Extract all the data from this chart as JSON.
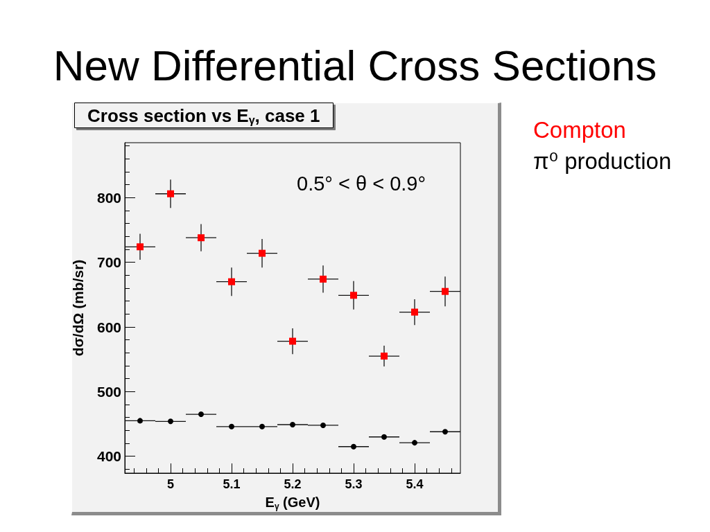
{
  "chart_data": {
    "type": "scatter",
    "title": "New Differential Cross Sections",
    "subtitle": "Cross section vs E$_{γ}$, case 1",
    "xlabel": "E$_{γ}$ (GeV)",
    "ylabel": "dσ/dΩ (mb/sr)",
    "annotations": [
      "0.5° < θ < 0.9°"
    ],
    "x": [
      4.95,
      5,
      5.05,
      5.1,
      5.15,
      5.2,
      5.25,
      5.3,
      5.35,
      5.4,
      5.45
    ],
    "series": [
      {
        "name": "Compton",
        "color": "#ff0000",
        "marker": "square",
        "values": [
          724,
          806,
          738,
          670,
          714,
          578,
          674,
          649,
          555,
          623,
          655
        ],
        "errors": [
          20,
          22,
          21,
          22,
          22,
          20,
          21,
          22,
          16,
          20,
          23
        ],
        "xerrors": [
          0.025,
          0.025,
          0.025,
          0.025,
          0.025,
          0.025,
          0.025,
          0.025,
          0.025,
          0.025,
          0.025
        ]
      },
      {
        "name": "π⁰ production",
        "color": "#000000",
        "marker": "circle",
        "values": [
          455,
          454,
          465,
          446,
          446,
          449,
          448,
          415,
          430,
          421,
          438
        ],
        "xerrors": [
          0.025,
          0.025,
          0.025,
          0.025,
          0.025,
          0.025,
          0.025,
          0.025,
          0.025,
          0.025,
          0.025
        ]
      }
    ],
    "xlim": [
      4.925,
      5.475
    ],
    "xticks": [
      {
        "value": 4.94,
        "label": null
      },
      {
        "value": 4.96,
        "label": null
      },
      {
        "value": 4.98,
        "label": null
      },
      5,
      {
        "value": 5.02,
        "label": null
      },
      {
        "value": 5.04,
        "label": null
      },
      {
        "value": 5.06,
        "label": null
      },
      {
        "value": 5.08,
        "label": null
      },
      5.1,
      {
        "value": 5.12,
        "label": null
      },
      {
        "value": 5.14,
        "label": null
      },
      {
        "value": 5.16,
        "label": null
      },
      {
        "value": 5.18,
        "label": null
      },
      5.2,
      {
        "value": 5.22,
        "label": null
      },
      {
        "value": 5.24,
        "label": null
      },
      {
        "value": 5.26,
        "label": null
      },
      {
        "value": 5.28,
        "label": null
      },
      5.3,
      {
        "value": 5.32,
        "label": null
      },
      {
        "value": 5.34,
        "label": null
      },
      {
        "value": 5.36,
        "label": null
      },
      {
        "value": 5.38,
        "label": null
      },
      5.4,
      {
        "value": 5.42,
        "label": null
      },
      {
        "value": 5.44,
        "label": null
      },
      {
        "value": 5.46,
        "label": null
      }
    ],
    "ylim": [
      374,
      885
    ],
    "yticks": [
      {
        "value": 380,
        "label": null
      },
      400,
      {
        "value": 420,
        "label": null
      },
      {
        "value": 440,
        "label": null
      },
      {
        "value": 460,
        "label": null
      },
      {
        "value": 480,
        "label": null
      },
      500,
      {
        "value": 520,
        "label": null
      },
      {
        "value": 540,
        "label": null
      },
      {
        "value": 560,
        "label": null
      },
      {
        "value": 580,
        "label": null
      },
      600,
      {
        "value": 620,
        "label": null
      },
      {
        "value": 640,
        "label": null
      },
      {
        "value": 660,
        "label": null
      },
      {
        "value": 680,
        "label": null
      },
      700,
      {
        "value": 720,
        "label": null
      },
      {
        "value": 740,
        "label": null
      },
      {
        "value": 760,
        "label": null
      },
      {
        "value": 780,
        "label": null
      },
      800,
      {
        "value": 820,
        "label": null
      },
      {
        "value": 840,
        "label": null
      },
      {
        "value": 860,
        "label": null
      },
      {
        "value": 880,
        "label": null
      }
    ],
    "legend": "top right"
  }
}
